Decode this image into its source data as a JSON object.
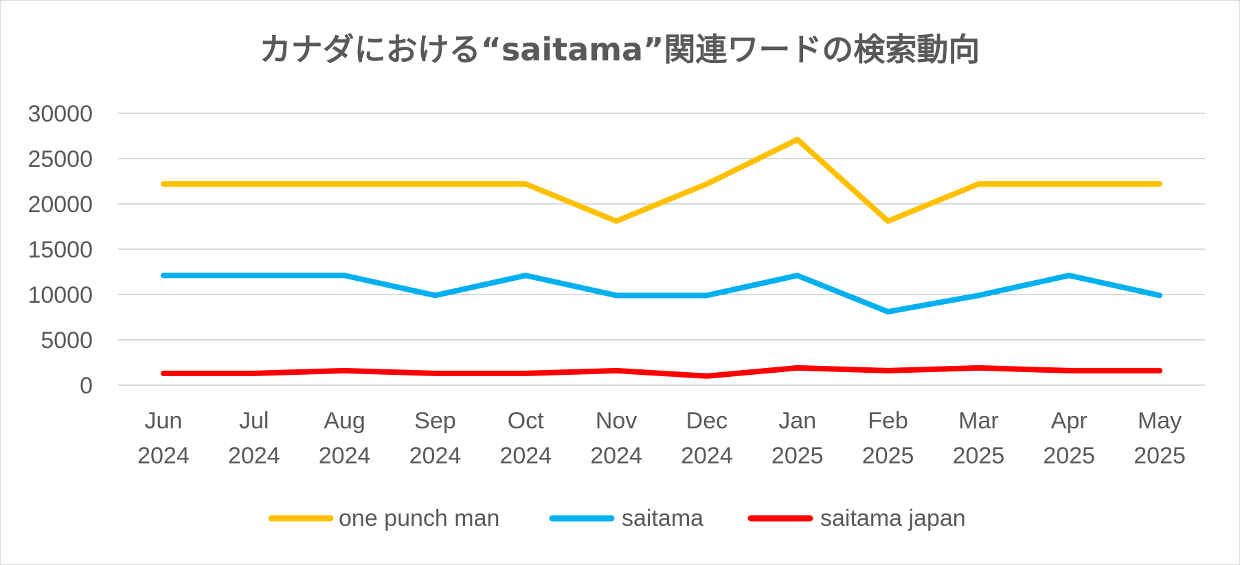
{
  "chart_data": {
    "type": "line",
    "title": "カナダにおける“saitama”関連ワードの検索動向",
    "xlabel": "",
    "ylabel": "",
    "categories": [
      [
        "Jun",
        "2024"
      ],
      [
        "Jul",
        "2024"
      ],
      [
        "Aug",
        "2024"
      ],
      [
        "Sep",
        "2024"
      ],
      [
        "Oct",
        "2024"
      ],
      [
        "Nov",
        "2024"
      ],
      [
        "Dec",
        "2024"
      ],
      [
        "Jan",
        "2025"
      ],
      [
        "Feb",
        "2025"
      ],
      [
        "Mar",
        "2025"
      ],
      [
        "Apr",
        "2025"
      ],
      [
        "May",
        "2025"
      ]
    ],
    "ylim": [
      0,
      30000
    ],
    "yticks": [
      "0",
      "5000",
      "10000",
      "15000",
      "20000",
      "25000",
      "30000"
    ],
    "grid": true,
    "legend_position": "bottom",
    "series": [
      {
        "name": "one punch man",
        "color": "#FFC000",
        "values": [
          22200,
          22200,
          22200,
          22200,
          22200,
          18100,
          22200,
          27100,
          18100,
          22200,
          22200,
          22200
        ]
      },
      {
        "name": "saitama",
        "color": "#00B0F0",
        "values": [
          12100,
          12100,
          12100,
          9900,
          12100,
          9900,
          9900,
          12100,
          8100,
          9900,
          12100,
          9900
        ]
      },
      {
        "name": "saitama japan",
        "color": "#FF0000",
        "values": [
          1300,
          1300,
          1600,
          1300,
          1300,
          1600,
          1000,
          1900,
          1600,
          1900,
          1600,
          1600
        ]
      }
    ]
  }
}
